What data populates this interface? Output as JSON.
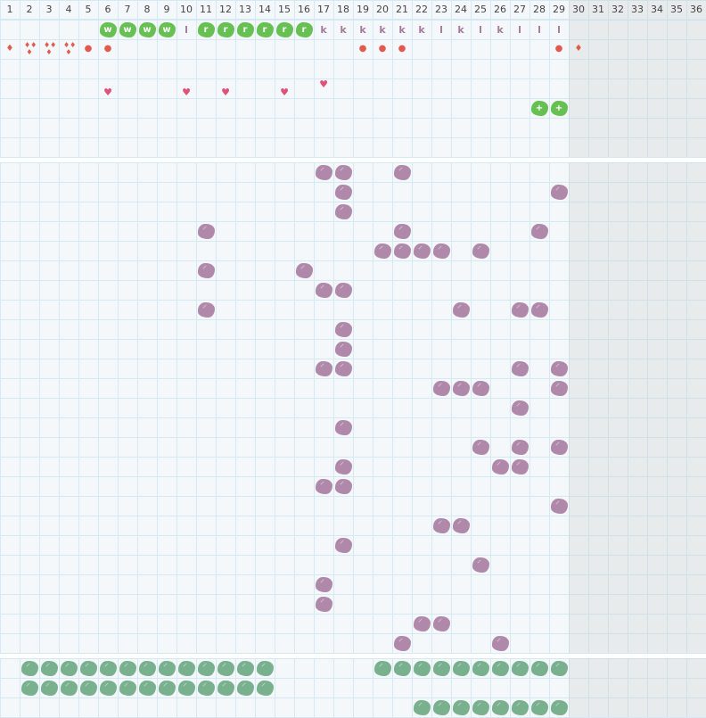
{
  "columns": [
    "1",
    "2",
    "3",
    "4",
    "5",
    "6",
    "7",
    "8",
    "9",
    "10",
    "11",
    "12",
    "13",
    "14",
    "15",
    "16",
    "17",
    "18",
    "19",
    "20",
    "21",
    "22",
    "23",
    "24",
    "25",
    "26",
    "27",
    "28",
    "29",
    "30",
    "31",
    "32",
    "33",
    "34",
    "35",
    "36"
  ],
  "colors": {
    "green": "#66c152",
    "purple": "#b089aa",
    "teal": "#79b08e",
    "red": "#e05a50",
    "heart": "#e0507a",
    "grid": "#d4e9f3"
  },
  "top": {
    "labels_row": [
      {
        "col": 6,
        "type": "green",
        "text": "w"
      },
      {
        "col": 7,
        "type": "green",
        "text": "w"
      },
      {
        "col": 8,
        "type": "green",
        "text": "w"
      },
      {
        "col": 9,
        "type": "green",
        "text": "w"
      },
      {
        "col": 10,
        "type": "letter",
        "text": "l"
      },
      {
        "col": 11,
        "type": "green",
        "text": "r"
      },
      {
        "col": 12,
        "type": "green",
        "text": "r"
      },
      {
        "col": 13,
        "type": "green",
        "text": "r"
      },
      {
        "col": 14,
        "type": "green",
        "text": "r"
      },
      {
        "col": 15,
        "type": "green",
        "text": "r"
      },
      {
        "col": 16,
        "type": "green",
        "text": "r"
      },
      {
        "col": 17,
        "type": "letter",
        "text": "k"
      },
      {
        "col": 18,
        "type": "letter",
        "text": "k"
      },
      {
        "col": 19,
        "type": "letter",
        "text": "k"
      },
      {
        "col": 20,
        "type": "letter",
        "text": "k"
      },
      {
        "col": 21,
        "type": "letter",
        "text": "k"
      },
      {
        "col": 22,
        "type": "letter",
        "text": "k"
      },
      {
        "col": 23,
        "type": "letter",
        "text": "l"
      },
      {
        "col": 24,
        "type": "letter",
        "text": "k"
      },
      {
        "col": 25,
        "type": "letter",
        "text": "l"
      },
      {
        "col": 26,
        "type": "letter",
        "text": "k"
      },
      {
        "col": 27,
        "type": "letter",
        "text": "l"
      },
      {
        "col": 28,
        "type": "letter",
        "text": "l"
      },
      {
        "col": 29,
        "type": "letter",
        "text": "l"
      }
    ],
    "resource_row": [
      {
        "col": 1,
        "icon": "drop-icon",
        "text": "♦"
      },
      {
        "col": 2,
        "icon": "triple-drop-icon",
        "text": "♦♦"
      },
      {
        "col": 3,
        "icon": "triple-drop-icon",
        "text": "♦♦"
      },
      {
        "col": 4,
        "icon": "triple-drop-icon",
        "text": "♦♦"
      },
      {
        "col": 5,
        "icon": "dot-icon",
        "text": "●"
      },
      {
        "col": 6,
        "icon": "dot-icon",
        "text": "●"
      },
      {
        "col": 19,
        "icon": "dot-icon",
        "text": "●"
      },
      {
        "col": 20,
        "icon": "dot-icon",
        "text": "●"
      },
      {
        "col": 21,
        "icon": "dot-icon",
        "text": "●"
      },
      {
        "col": 29,
        "icon": "dot-icon",
        "text": "●"
      },
      {
        "col": 30,
        "icon": "drop-icon",
        "text": "♦"
      }
    ],
    "hearts_row": [
      {
        "col": 6,
        "high": false
      },
      {
        "col": 10,
        "high": false
      },
      {
        "col": 12,
        "high": false
      },
      {
        "col": 15,
        "high": false
      },
      {
        "col": 17,
        "high": true
      }
    ],
    "heart_glyph": "♥",
    "plus_row": [
      {
        "col": 28,
        "text": "+"
      },
      {
        "col": 29,
        "text": "+"
      }
    ]
  },
  "middle_blobs": [
    [
      17,
      18,
      21
    ],
    [
      18,
      29
    ],
    [
      18
    ],
    [
      11,
      21,
      28
    ],
    [
      20,
      21,
      22,
      23,
      25
    ],
    [
      11,
      16
    ],
    [
      17,
      18
    ],
    [
      11,
      24,
      27,
      28
    ],
    [
      18
    ],
    [
      18
    ],
    [
      17,
      18,
      27,
      29
    ],
    [
      23,
      24,
      25,
      29
    ],
    [
      27
    ],
    [
      18
    ],
    [
      25,
      27,
      29
    ],
    [
      18,
      26,
      27
    ],
    [
      17,
      18
    ],
    [
      29
    ],
    [
      23,
      24
    ],
    [
      18
    ],
    [
      25
    ],
    [
      17
    ],
    [
      17
    ],
    [
      22,
      23
    ],
    [
      21,
      26
    ]
  ],
  "bottom_blobs": [
    [
      2,
      3,
      4,
      5,
      6,
      7,
      8,
      9,
      10,
      11,
      12,
      13,
      14,
      20,
      21,
      22,
      23,
      24,
      25,
      26,
      27,
      28,
      29
    ],
    [
      2,
      3,
      4,
      5,
      6,
      7,
      8,
      9,
      10,
      11,
      12,
      13,
      14
    ],
    [
      22,
      23,
      24,
      25,
      26,
      27,
      28,
      29
    ]
  ]
}
